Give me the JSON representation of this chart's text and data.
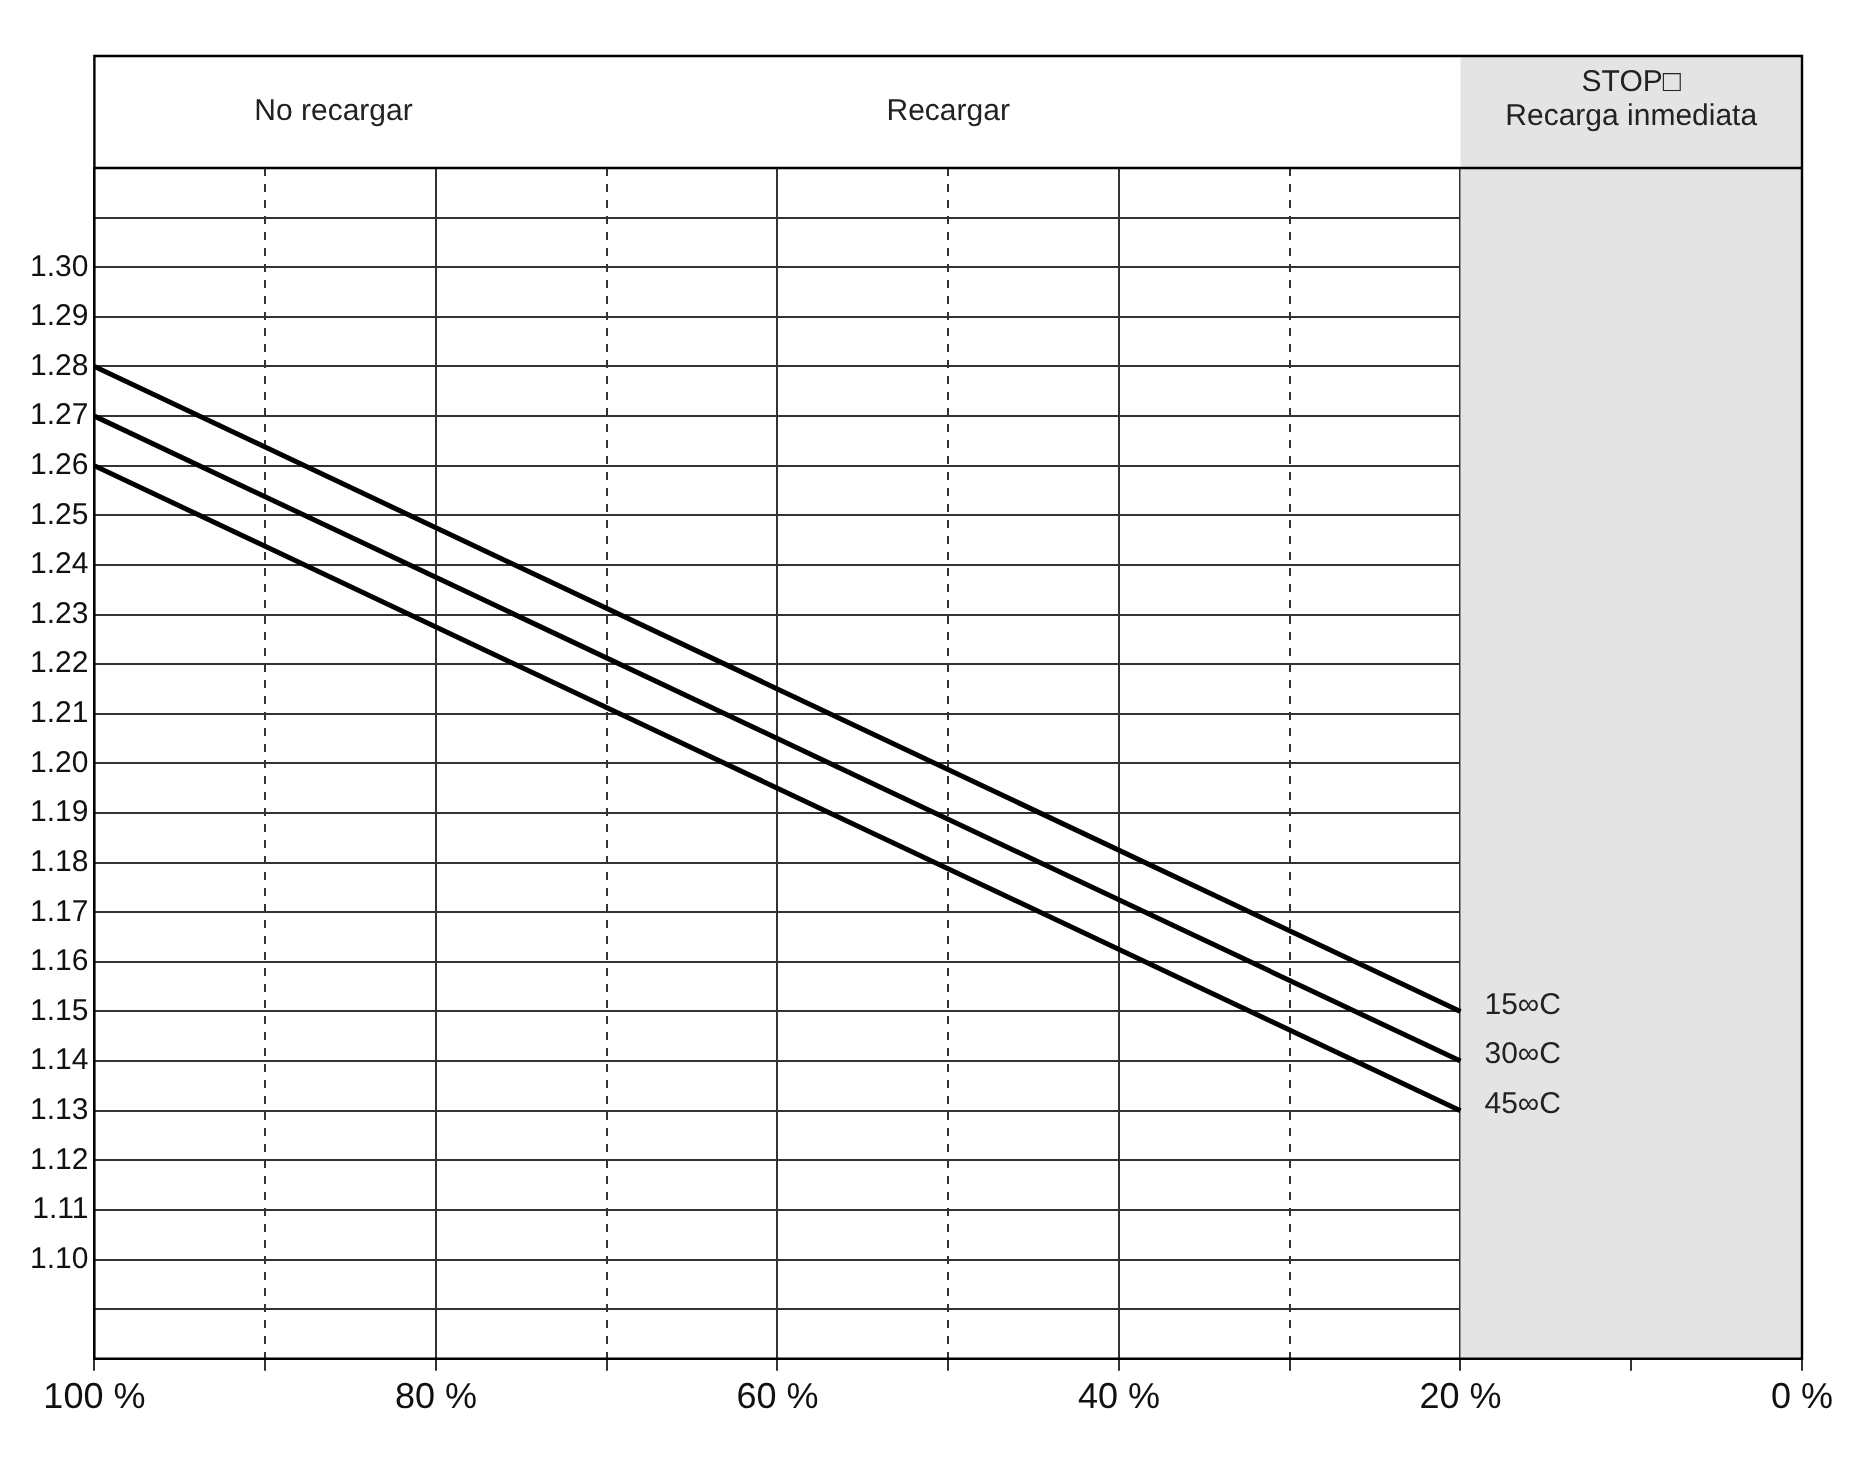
{
  "chart_data": {
    "type": "line",
    "x": [
      100,
      20
    ],
    "series": [
      {
        "name": "15∞C",
        "color": "#000000",
        "values": [
          1.28,
          1.15
        ]
      },
      {
        "name": "30∞C",
        "color": "#000000",
        "values": [
          1.27,
          1.14
        ]
      },
      {
        "name": "45∞C",
        "color": "#000000",
        "values": [
          1.26,
          1.13
        ]
      }
    ],
    "xlim": [
      100,
      0
    ],
    "xticks": [
      {
        "value": 100,
        "label": "100 %"
      },
      {
        "value": 90,
        "label": null
      },
      {
        "value": 80,
        "label": "80 %"
      },
      {
        "value": 70,
        "label": null
      },
      {
        "value": 60,
        "label": "60 %"
      },
      {
        "value": 50,
        "label": null
      },
      {
        "value": 40,
        "label": "40 %"
      },
      {
        "value": 30,
        "label": null
      },
      {
        "value": 20,
        "label": "20 %"
      },
      {
        "value": 10,
        "label": null
      },
      {
        "value": 0,
        "label": "0 %"
      }
    ],
    "ylim": [
      1.08,
      1.32
    ],
    "yticks": [
      {
        "value": 1.08,
        "label": null
      },
      {
        "value": 1.09,
        "label": null
      },
      {
        "value": 1.1,
        "label": "1.10"
      },
      1.11,
      1.12,
      1.13,
      1.14,
      1.15,
      1.16,
      1.17,
      1.18,
      1.19,
      {
        "value": 1.2,
        "label": "1.20"
      },
      1.21,
      1.22,
      1.23,
      1.24,
      1.25,
      1.26,
      1.27,
      1.28,
      1.29,
      {
        "value": 1.3,
        "label": "1.30"
      },
      {
        "value": 1.31,
        "label": null
      },
      {
        "value": 1.32,
        "label": null
      }
    ],
    "bands": [
      {
        "axis": "x",
        "from": 20,
        "to": 0,
        "label": "STOP□\nRecarga inmediata",
        "color": "#e4e4e4"
      }
    ],
    "annotations": [
      "No recargar",
      "Recargar"
    ],
    "grid": true,
    "legend": false,
    "marker": "none",
    "line_style": "solid"
  }
}
